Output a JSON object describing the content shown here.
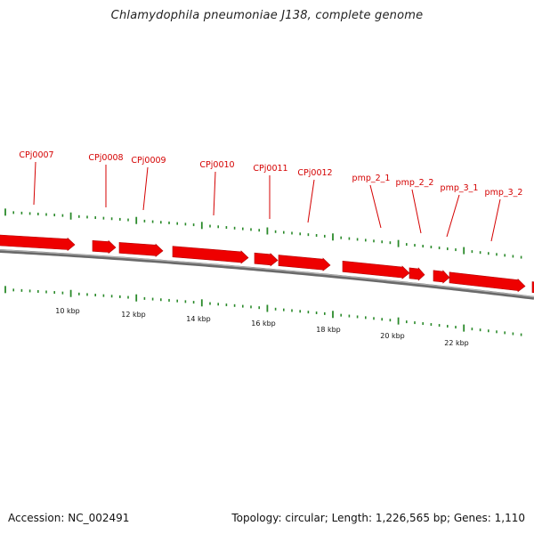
{
  "title": "Chlamydophila pneumoniae J138, complete genome",
  "footer": {
    "accession": "Accession: NC_002491",
    "summary": "Topology: circular; Length: 1,226,565 bp; Genes: 1,110"
  },
  "colors": {
    "gene": "#ee0000",
    "gene_label": "#d40000",
    "tick": "#2a8a2a",
    "backbone": "#6a6a6a"
  },
  "genes": [
    {
      "name": "CPj0007"
    },
    {
      "name": "CPj0008"
    },
    {
      "name": "CPj0009"
    },
    {
      "name": "CPj0010"
    },
    {
      "name": "CPj0011"
    },
    {
      "name": "CPj0012"
    },
    {
      "name": "pmp_2_1"
    },
    {
      "name": "pmp_2_2"
    },
    {
      "name": "pmp_3_1"
    },
    {
      "name": "pmp_3_2"
    }
  ],
  "scale_labels": [
    "10 kbp",
    "12 kbp",
    "14 kbp",
    "16 kbp",
    "18 kbp",
    "20 kbp",
    "22 kbp"
  ]
}
